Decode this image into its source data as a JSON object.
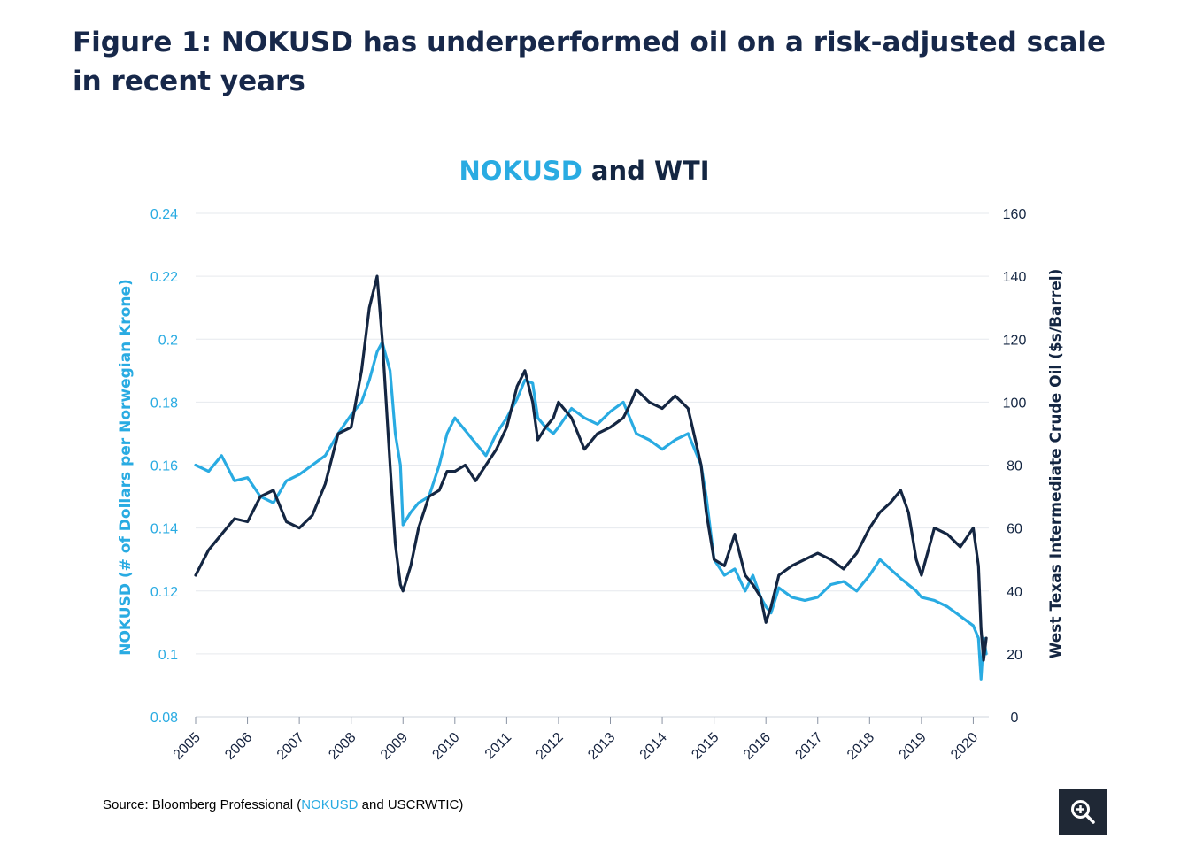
{
  "figure": {
    "title": "Figure 1: NOKUSD has underperformed oil on a risk-adjusted scale in recent years"
  },
  "colors": {
    "nokusd": "#29abe2",
    "wti": "#142642",
    "grid": "#e6e9ee",
    "text": "#16233f"
  },
  "icons": {
    "zoom": "zoom-in-icon"
  },
  "chart_data": {
    "type": "line",
    "title_parts": [
      "NOKUSD",
      "and WTI"
    ],
    "x_tick_labels": [
      "2005",
      "2006",
      "2007",
      "2008",
      "2009",
      "2010",
      "2011",
      "2012",
      "2013",
      "2014",
      "2015",
      "2016",
      "2017",
      "2018",
      "2019",
      "2020"
    ],
    "xlim": [
      2005,
      2020.3
    ],
    "y_left": {
      "label": "NOKUSD (# of Dollars per Norwegian Krone)",
      "lim": [
        0.08,
        0.24
      ],
      "ticks": [
        "0.08",
        "0.1",
        "0.12",
        "0.14",
        "0.16",
        "0.18",
        "0.2",
        "0.22",
        "0.24"
      ]
    },
    "y_right": {
      "label": "West Texas Intermediate Crude Oil ($s/Barrel)",
      "lim": [
        0,
        160
      ],
      "ticks": [
        "0",
        "20",
        "40",
        "60",
        "80",
        "100",
        "120",
        "140",
        "160"
      ]
    },
    "grid": true,
    "legend": "none",
    "series": [
      {
        "name": "NOKUSD",
        "axis": "left",
        "color": "#29abe2",
        "x": [
          2005.0,
          2005.25,
          2005.5,
          2005.75,
          2006.0,
          2006.25,
          2006.5,
          2006.75,
          2007.0,
          2007.25,
          2007.5,
          2007.75,
          2008.0,
          2008.2,
          2008.35,
          2008.5,
          2008.6,
          2008.75,
          2008.85,
          2008.95,
          2009.0,
          2009.15,
          2009.3,
          2009.5,
          2009.7,
          2009.85,
          2010.0,
          2010.2,
          2010.4,
          2010.6,
          2010.8,
          2011.0,
          2011.2,
          2011.35,
          2011.5,
          2011.6,
          2011.75,
          2011.9,
          2012.0,
          2012.25,
          2012.5,
          2012.75,
          2013.0,
          2013.25,
          2013.4,
          2013.5,
          2013.75,
          2014.0,
          2014.25,
          2014.5,
          2014.75,
          2014.85,
          2015.0,
          2015.2,
          2015.4,
          2015.6,
          2015.75,
          2015.9,
          2016.0,
          2016.1,
          2016.25,
          2016.5,
          2016.75,
          2017.0,
          2017.25,
          2017.5,
          2017.75,
          2018.0,
          2018.2,
          2018.4,
          2018.6,
          2018.75,
          2018.9,
          2019.0,
          2019.25,
          2019.5,
          2019.75,
          2020.0,
          2020.1,
          2020.15,
          2020.2,
          2020.25
        ],
        "y": [
          0.16,
          0.158,
          0.163,
          0.155,
          0.156,
          0.15,
          0.148,
          0.155,
          0.157,
          0.16,
          0.163,
          0.17,
          0.176,
          0.18,
          0.187,
          0.196,
          0.199,
          0.19,
          0.17,
          0.16,
          0.141,
          0.145,
          0.148,
          0.15,
          0.16,
          0.17,
          0.175,
          0.171,
          0.167,
          0.163,
          0.17,
          0.175,
          0.181,
          0.187,
          0.186,
          0.175,
          0.172,
          0.17,
          0.172,
          0.178,
          0.175,
          0.173,
          0.177,
          0.18,
          0.174,
          0.17,
          0.168,
          0.165,
          0.168,
          0.17,
          0.16,
          0.15,
          0.13,
          0.125,
          0.127,
          0.12,
          0.125,
          0.118,
          0.115,
          0.113,
          0.121,
          0.118,
          0.117,
          0.118,
          0.122,
          0.123,
          0.12,
          0.125,
          0.13,
          0.127,
          0.124,
          0.122,
          0.12,
          0.118,
          0.117,
          0.115,
          0.112,
          0.109,
          0.105,
          0.092,
          0.105,
          0.1
        ]
      },
      {
        "name": "WTI",
        "axis": "right",
        "color": "#142642",
        "x": [
          2005.0,
          2005.25,
          2005.5,
          2005.75,
          2006.0,
          2006.25,
          2006.5,
          2006.75,
          2007.0,
          2007.25,
          2007.5,
          2007.75,
          2008.0,
          2008.2,
          2008.35,
          2008.5,
          2008.6,
          2008.75,
          2008.85,
          2008.95,
          2009.0,
          2009.15,
          2009.3,
          2009.5,
          2009.7,
          2009.85,
          2010.0,
          2010.2,
          2010.4,
          2010.6,
          2010.8,
          2011.0,
          2011.2,
          2011.35,
          2011.5,
          2011.6,
          2011.75,
          2011.9,
          2012.0,
          2012.25,
          2012.5,
          2012.75,
          2013.0,
          2013.25,
          2013.4,
          2013.5,
          2013.75,
          2014.0,
          2014.25,
          2014.5,
          2014.75,
          2014.85,
          2015.0,
          2015.2,
          2015.4,
          2015.6,
          2015.75,
          2015.9,
          2016.0,
          2016.1,
          2016.25,
          2016.5,
          2016.75,
          2017.0,
          2017.25,
          2017.5,
          2017.75,
          2018.0,
          2018.2,
          2018.4,
          2018.6,
          2018.75,
          2018.9,
          2019.0,
          2019.25,
          2019.5,
          2019.75,
          2020.0,
          2020.1,
          2020.15,
          2020.2,
          2020.25
        ],
        "y": [
          45,
          53,
          58,
          63,
          62,
          70,
          72,
          62,
          60,
          64,
          74,
          90,
          92,
          110,
          130,
          140,
          120,
          80,
          55,
          42,
          40,
          48,
          60,
          70,
          72,
          78,
          78,
          80,
          75,
          80,
          85,
          92,
          105,
          110,
          100,
          88,
          92,
          95,
          100,
          95,
          85,
          90,
          92,
          95,
          100,
          104,
          100,
          98,
          102,
          98,
          80,
          65,
          50,
          48,
          58,
          45,
          42,
          38,
          30,
          35,
          45,
          48,
          50,
          52,
          50,
          47,
          52,
          60,
          65,
          68,
          72,
          65,
          50,
          45,
          60,
          58,
          54,
          60,
          48,
          28,
          18,
          25
        ]
      }
    ],
    "source_prefix": "Source: Bloomberg Professional (",
    "source_highlight": "NOKUSD",
    "source_suffix": " and USCRWTIC)"
  }
}
